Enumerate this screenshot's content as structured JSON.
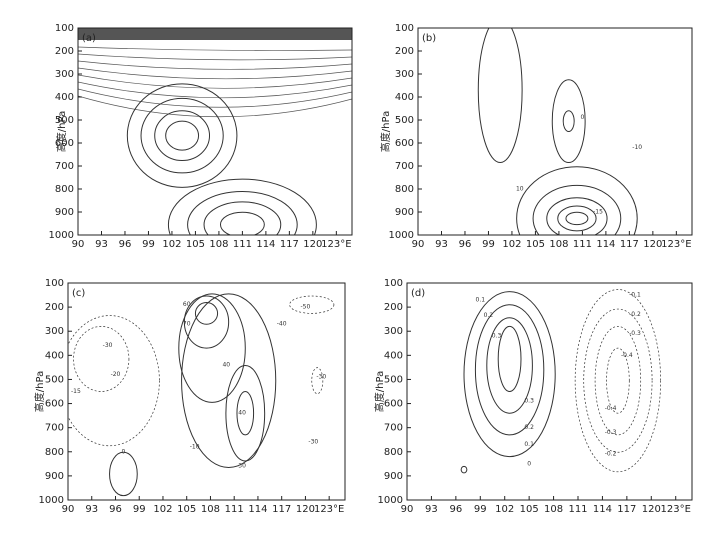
{
  "chart_data": [
    {
      "type": "contour",
      "panel_label": "(a)",
      "ylabel": "高度/hPa",
      "xlim": [
        90,
        125
      ],
      "ylim": [
        1000,
        100
      ],
      "xticks": [
        90,
        93,
        96,
        99,
        102,
        105,
        108,
        111,
        114,
        117,
        120,
        {
          "value": 123,
          "label": "123°E"
        }
      ],
      "yticks": [
        1000,
        900,
        800,
        700,
        600,
        500,
        400,
        300,
        200,
        100
      ],
      "contour_labels": []
    },
    {
      "type": "contour",
      "panel_label": "(b)",
      "ylabel": "高度/hPa",
      "xlim": [
        90,
        125
      ],
      "ylim": [
        1000,
        100
      ],
      "xticks": [
        90,
        93,
        96,
        99,
        102,
        105,
        108,
        111,
        114,
        117,
        120,
        {
          "value": 123,
          "label": "123°E"
        }
      ],
      "yticks": [
        1000,
        900,
        800,
        700,
        600,
        500,
        400,
        300,
        200,
        100
      ],
      "contour_labels": [
        {
          "text": "0",
          "x": 111,
          "y": 490
        },
        {
          "text": "-10",
          "x": 118,
          "y": 620
        },
        {
          "text": "-15",
          "x": 113,
          "y": 900
        },
        {
          "text": "10",
          "x": 103,
          "y": 800
        }
      ]
    },
    {
      "type": "contour",
      "panel_label": "(c)",
      "ylabel": "高度/hPa",
      "xlim": [
        90,
        125
      ],
      "ylim": [
        1000,
        100
      ],
      "xticks": [
        90,
        93,
        96,
        99,
        102,
        105,
        108,
        111,
        114,
        117,
        120,
        {
          "value": 123,
          "label": "123°E"
        }
      ],
      "yticks": [
        1000,
        900,
        800,
        700,
        600,
        500,
        400,
        300,
        200,
        100
      ],
      "contour_labels": [
        {
          "text": "-30",
          "x": 95,
          "y": 360
        },
        {
          "text": "-20",
          "x": 96,
          "y": 480
        },
        {
          "text": "-15",
          "x": 91,
          "y": 550
        },
        {
          "text": "0",
          "x": 97,
          "y": 800
        },
        {
          "text": "-10",
          "x": 106,
          "y": 780
        },
        {
          "text": "60",
          "x": 105,
          "y": 190
        },
        {
          "text": "70",
          "x": 105,
          "y": 270
        },
        {
          "text": "40",
          "x": 110,
          "y": 440
        },
        {
          "text": "40",
          "x": 112,
          "y": 640
        },
        {
          "text": "30",
          "x": 112,
          "y": 860
        },
        {
          "text": "-40",
          "x": 117,
          "y": 270
        },
        {
          "text": "-50",
          "x": 120,
          "y": 200
        },
        {
          "text": "-30",
          "x": 122,
          "y": 490
        },
        {
          "text": "-30",
          "x": 121,
          "y": 760
        }
      ]
    },
    {
      "type": "contour",
      "panel_label": "(d)",
      "ylabel": "高度/hPa",
      "xlim": [
        90,
        125
      ],
      "ylim": [
        1000,
        100
      ],
      "xticks": [
        90,
        93,
        96,
        99,
        102,
        105,
        108,
        111,
        114,
        117,
        120,
        {
          "value": 123,
          "label": "123°E"
        }
      ],
      "yticks": [
        1000,
        900,
        800,
        700,
        600,
        500,
        400,
        300,
        200,
        100
      ],
      "contour_labels": [
        {
          "text": "0.1",
          "x": 99,
          "y": 170
        },
        {
          "text": "0.2",
          "x": 100,
          "y": 235
        },
        {
          "text": "0.3",
          "x": 101,
          "y": 320
        },
        {
          "text": "0.3",
          "x": 105,
          "y": 590
        },
        {
          "text": "0.2",
          "x": 105,
          "y": 700
        },
        {
          "text": "0.1",
          "x": 105,
          "y": 770
        },
        {
          "text": "0",
          "x": 105,
          "y": 850
        },
        {
          "text": "-0.1",
          "x": 118,
          "y": 150
        },
        {
          "text": "-0.2",
          "x": 118,
          "y": 230
        },
        {
          "text": "-0.3",
          "x": 118,
          "y": 310
        },
        {
          "text": "-0.4",
          "x": 117,
          "y": 400
        },
        {
          "text": "-0.4",
          "x": 115,
          "y": 620
        },
        {
          "text": "-0.3",
          "x": 115,
          "y": 720
        },
        {
          "text": "-0.2",
          "x": 115,
          "y": 810
        }
      ]
    }
  ]
}
